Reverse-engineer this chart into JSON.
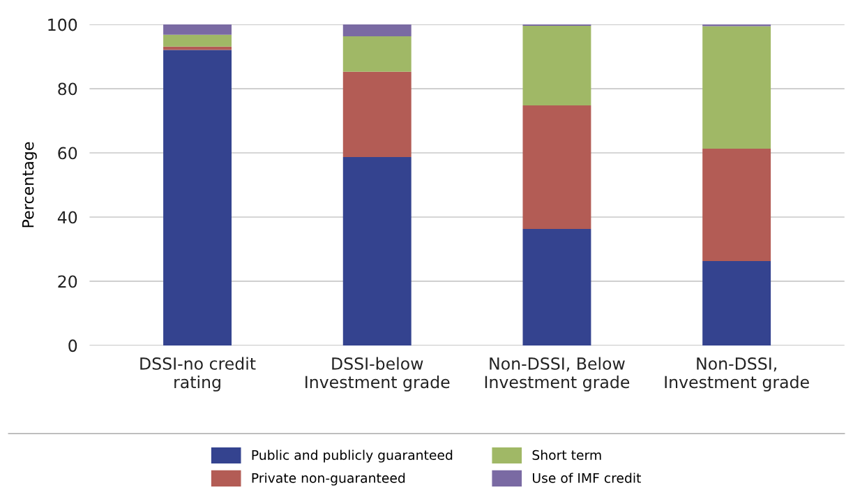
{
  "chart_data": {
    "type": "bar",
    "stacked": true,
    "ylabel": "Percentage",
    "categories": [
      "DSSI-no credit\nrating",
      "DSSI-below\nInvestment grade",
      "Non-DSSI, Below\nInvestment grade",
      "Non-DSSI,\nInvestment grade"
    ],
    "series": [
      {
        "name": "Public and publicly guaranteed",
        "color": "#34438f",
        "values": [
          92.1,
          58.7,
          36.3,
          26.3
        ]
      },
      {
        "name": "Private non-guaranteed",
        "color": "#b35c55",
        "values": [
          1.0,
          26.6,
          38.5,
          35.0
        ]
      },
      {
        "name": "Short term",
        "color": "#a0b866",
        "values": [
          3.7,
          11.0,
          24.8,
          38.2
        ]
      },
      {
        "name": "Use of IMF credit",
        "color": "#7a6aa3",
        "values": [
          3.2,
          3.7,
          0.4,
          0.5
        ]
      }
    ],
    "ylim": [
      0,
      100
    ],
    "yticks": [
      0,
      20,
      40,
      60,
      80,
      100
    ],
    "grid": "y",
    "legend": "bottom"
  }
}
